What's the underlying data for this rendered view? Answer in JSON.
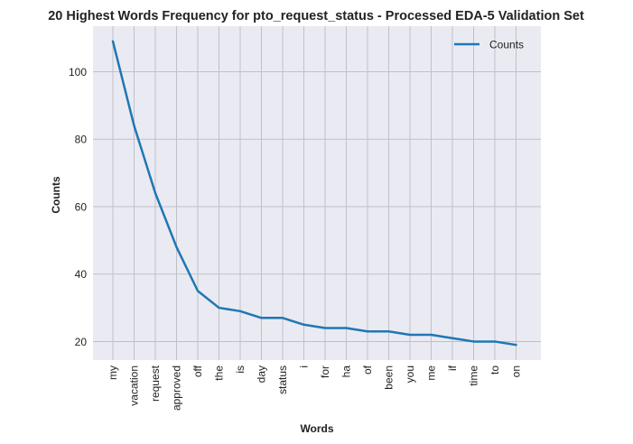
{
  "chart_data": {
    "type": "line",
    "title": "20 Highest Words Frequency for pto_request_status - Processed EDA-5 Validation Set",
    "xlabel": "Words",
    "ylabel": "Counts",
    "categories": [
      "my",
      "vacation",
      "request",
      "approved",
      "off",
      "the",
      "is",
      "day",
      "status",
      "i",
      "for",
      "ha",
      "of",
      "been",
      "you",
      "me",
      "if",
      "time",
      "to",
      "on"
    ],
    "series": [
      {
        "name": "Counts",
        "color": "#1f77b4",
        "values": [
          109,
          84,
          64,
          48,
          35,
          30,
          29,
          27,
          27,
          25,
          24,
          24,
          23,
          23,
          22,
          22,
          21,
          20,
          20,
          19
        ]
      }
    ],
    "yticks": [
      20,
      40,
      60,
      80,
      100
    ],
    "ylim": [
      14.5,
      113.5
    ],
    "grid": true,
    "legend": "top-right",
    "background": "#eaeaf2",
    "gridColor": "#c0c0c8"
  }
}
